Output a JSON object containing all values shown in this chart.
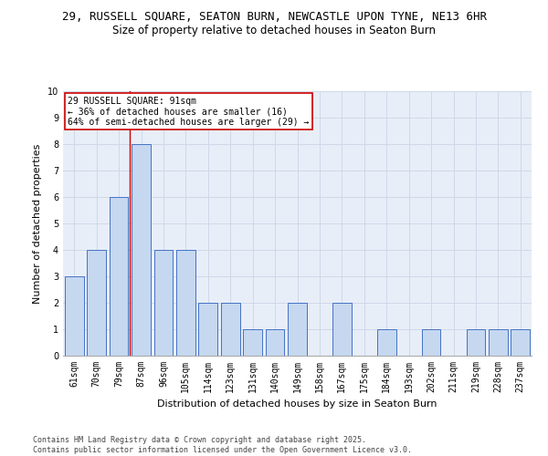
{
  "title_line1": "29, RUSSELL SQUARE, SEATON BURN, NEWCASTLE UPON TYNE, NE13 6HR",
  "title_line2": "Size of property relative to detached houses in Seaton Burn",
  "xlabel": "Distribution of detached houses by size in Seaton Burn",
  "ylabel": "Number of detached properties",
  "categories": [
    "61sqm",
    "70sqm",
    "79sqm",
    "87sqm",
    "96sqm",
    "105sqm",
    "114sqm",
    "123sqm",
    "131sqm",
    "140sqm",
    "149sqm",
    "158sqm",
    "167sqm",
    "175sqm",
    "184sqm",
    "193sqm",
    "202sqm",
    "211sqm",
    "219sqm",
    "228sqm",
    "237sqm"
  ],
  "values": [
    3,
    4,
    6,
    8,
    4,
    4,
    2,
    2,
    1,
    1,
    2,
    0,
    2,
    0,
    1,
    0,
    1,
    0,
    1,
    1,
    1
  ],
  "bar_color": "#c5d8f0",
  "bar_edge_color": "#4472c4",
  "highlight_bar_index": 3,
  "highlight_line_color": "#cc0000",
  "ylim": [
    0,
    10
  ],
  "yticks": [
    0,
    1,
    2,
    3,
    4,
    5,
    6,
    7,
    8,
    9,
    10
  ],
  "annotation_text": "29 RUSSELL SQUARE: 91sqm\n← 36% of detached houses are smaller (16)\n64% of semi-detached houses are larger (29) →",
  "annotation_box_color": "#ffffff",
  "annotation_box_edge": "#cc0000",
  "grid_color": "#d0d8e8",
  "bg_color": "#e8eef8",
  "footer_text": "Contains HM Land Registry data © Crown copyright and database right 2025.\nContains public sector information licensed under the Open Government Licence v3.0.",
  "title_fontsize": 9,
  "subtitle_fontsize": 8.5,
  "tick_fontsize": 7,
  "ylabel_fontsize": 8,
  "xlabel_fontsize": 8,
  "annotation_fontsize": 7,
  "footer_fontsize": 6
}
